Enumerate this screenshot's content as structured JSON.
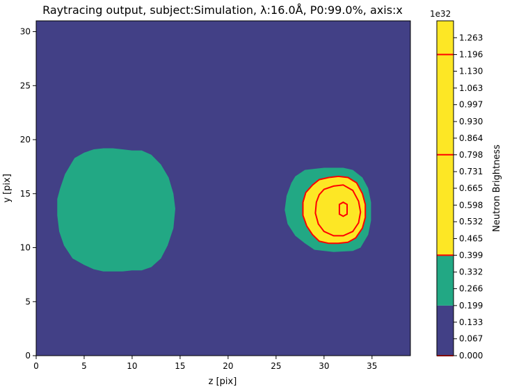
{
  "chart_data": {
    "type": "heatmap",
    "title": "Raytracing output, subject:Simulation, λ:16.0Å, P0:99.0%, axis:x",
    "xlabel": "z [pix]",
    "ylabel": "y [pix]",
    "xlim": [
      0,
      39
    ],
    "ylim": [
      0,
      31
    ],
    "x_ticks": [
      0,
      5,
      10,
      15,
      20,
      25,
      30,
      35
    ],
    "y_ticks": [
      0,
      5,
      10,
      15,
      20,
      25,
      30
    ],
    "background_color": "#424086",
    "regions": [
      {
        "name": "left-blob",
        "fill": "#22a884",
        "outline": [
          [
            4,
            18.3
          ],
          [
            5,
            18.8
          ],
          [
            6,
            19.1
          ],
          [
            7,
            19.2
          ],
          [
            8,
            19.2
          ],
          [
            9,
            19.1
          ],
          [
            10,
            19.0
          ],
          [
            11,
            19.0
          ],
          [
            12,
            18.6
          ],
          [
            13,
            17.7
          ],
          [
            13.8,
            16.5
          ],
          [
            14.3,
            15.0
          ],
          [
            14.5,
            13.6
          ],
          [
            14.3,
            11.8
          ],
          [
            13.7,
            10.2
          ],
          [
            13,
            9.0
          ],
          [
            12,
            8.2
          ],
          [
            11,
            7.9
          ],
          [
            10,
            7.9
          ],
          [
            9,
            7.8
          ],
          [
            8,
            7.8
          ],
          [
            7,
            7.8
          ],
          [
            6,
            8.0
          ],
          [
            5,
            8.4
          ],
          [
            4,
            8.9
          ],
          [
            3.8,
            9.0
          ],
          [
            2.9,
            10.2
          ],
          [
            2.4,
            11.5
          ],
          [
            2.2,
            13.0
          ],
          [
            2.2,
            14.5
          ],
          [
            2.5,
            15.5
          ],
          [
            3.0,
            16.8
          ],
          [
            3.8,
            18.0
          ]
        ]
      },
      {
        "name": "right-blob",
        "fill": "#22a884",
        "outline": [
          [
            27,
            16.6
          ],
          [
            28,
            17.2
          ],
          [
            30,
            17.4
          ],
          [
            32,
            17.4
          ],
          [
            33,
            17.2
          ],
          [
            34,
            16.5
          ],
          [
            34.6,
            15.5
          ],
          [
            34.9,
            14.2
          ],
          [
            34.9,
            12.5
          ],
          [
            34.6,
            11.2
          ],
          [
            33.8,
            10.0
          ],
          [
            33,
            9.7
          ],
          [
            31,
            9.6
          ],
          [
            29,
            9.8
          ],
          [
            28,
            10.4
          ],
          [
            27,
            11.1
          ],
          [
            26.2,
            12.2
          ],
          [
            25.9,
            13.5
          ],
          [
            26.1,
            14.8
          ],
          [
            26.6,
            16.0
          ]
        ]
      },
      {
        "name": "hot-spot",
        "fill": "#fde725",
        "outline": [
          [
            28.8,
            15.8
          ],
          [
            29.5,
            16.3
          ],
          [
            30.5,
            16.5
          ],
          [
            31.5,
            16.6
          ],
          [
            32.5,
            16.5
          ],
          [
            33.4,
            16.0
          ],
          [
            34.0,
            15.0
          ],
          [
            34.3,
            14.0
          ],
          [
            34.3,
            12.8
          ],
          [
            34.0,
            11.8
          ],
          [
            33.3,
            10.9
          ],
          [
            32.5,
            10.5
          ],
          [
            31.5,
            10.4
          ],
          [
            30.5,
            10.4
          ],
          [
            29.5,
            10.6
          ],
          [
            28.8,
            11.2
          ],
          [
            28.2,
            12.0
          ],
          [
            27.8,
            13.0
          ],
          [
            27.8,
            14.2
          ],
          [
            28.1,
            15.1
          ]
        ]
      }
    ],
    "contours": [
      {
        "level": 0.399,
        "color": "#ff0000",
        "path": [
          [
            28.8,
            15.8
          ],
          [
            29.5,
            16.3
          ],
          [
            30.5,
            16.5
          ],
          [
            31.5,
            16.6
          ],
          [
            32.5,
            16.5
          ],
          [
            33.4,
            16.0
          ],
          [
            34.0,
            15.0
          ],
          [
            34.3,
            14.0
          ],
          [
            34.3,
            12.8
          ],
          [
            34.0,
            11.8
          ],
          [
            33.3,
            10.9
          ],
          [
            32.5,
            10.5
          ],
          [
            31.5,
            10.4
          ],
          [
            30.5,
            10.4
          ],
          [
            29.5,
            10.6
          ],
          [
            28.8,
            11.2
          ],
          [
            28.2,
            12.0
          ],
          [
            27.8,
            13.0
          ],
          [
            27.8,
            14.2
          ],
          [
            28.1,
            15.1
          ]
        ]
      },
      {
        "level": 0.798,
        "color": "#ff0000",
        "path": [
          [
            30,
            15.4
          ],
          [
            31,
            15.7
          ],
          [
            32,
            15.8
          ],
          [
            33,
            15.3
          ],
          [
            33.6,
            14.3
          ],
          [
            33.8,
            13.3
          ],
          [
            33.6,
            12.3
          ],
          [
            33.0,
            11.5
          ],
          [
            32,
            11.1
          ],
          [
            31,
            11.1
          ],
          [
            30,
            11.5
          ],
          [
            29.4,
            12.2
          ],
          [
            29.1,
            13.2
          ],
          [
            29.2,
            14.2
          ],
          [
            29.5,
            14.9
          ]
        ]
      },
      {
        "level": 1.196,
        "color": "#ff0000",
        "path": [
          [
            31.6,
            14.0
          ],
          [
            32.0,
            14.2
          ],
          [
            32.4,
            14.0
          ],
          [
            32.4,
            13.1
          ],
          [
            32.0,
            12.9
          ],
          [
            31.6,
            13.1
          ]
        ]
      }
    ],
    "colorbar": {
      "label": "Neutron Brightness",
      "exponent_label": "1e32",
      "ticks": [
        "0.000",
        "0.067",
        "0.133",
        "0.199",
        "0.266",
        "0.332",
        "0.399",
        "0.465",
        "0.532",
        "0.598",
        "0.665",
        "0.731",
        "0.798",
        "0.864",
        "0.930",
        "0.997",
        "1.063",
        "1.130",
        "1.196",
        "1.263"
      ],
      "range": [
        0,
        1.33
      ],
      "bands": [
        {
          "from": 0.0,
          "to": 0.199,
          "color": "#424086"
        },
        {
          "from": 0.199,
          "to": 0.399,
          "color": "#22a884"
        },
        {
          "from": 0.399,
          "to": 1.33,
          "color": "#fde725"
        }
      ],
      "contour_levels": [
        0.0,
        0.399,
        0.798,
        1.196
      ],
      "contour_color": "#ff0000"
    },
    "grid": false,
    "legend": "none"
  }
}
